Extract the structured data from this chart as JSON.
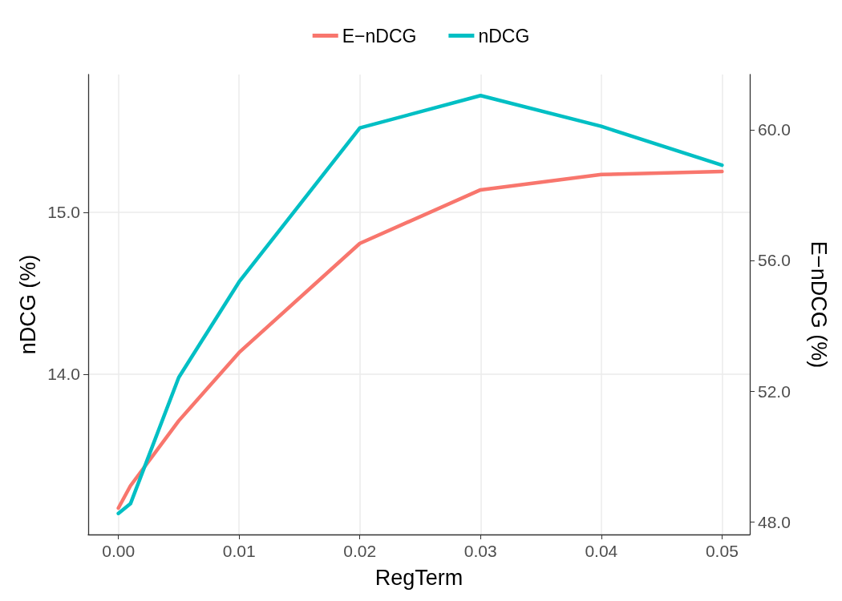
{
  "chart_data": {
    "type": "line",
    "xlabel": "RegTerm",
    "ylabel": "nDCG (%)",
    "y2label": "E−nDCG (%)",
    "x": [
      0,
      0.001,
      0.005,
      0.01,
      0.02,
      0.03,
      0.04,
      0.05
    ],
    "series": [
      {
        "name": "E−nDCG",
        "color": "#f8766d",
        "axis": "y2",
        "values": [
          48.42,
          49.1,
          51.09,
          53.18,
          56.52,
          58.16,
          58.63,
          58.72
        ]
      },
      {
        "name": "nDCG",
        "color": "#00bfc4",
        "values": [
          13.14,
          13.2,
          13.98,
          14.57,
          15.52,
          15.72,
          15.53,
          15.29
        ]
      }
    ],
    "xlim": [
      -0.0025,
      0.0523
    ],
    "xticks": [
      {
        "value": 0,
        "label": "0.00"
      },
      {
        "value": 0.01,
        "label": "0.01"
      },
      {
        "value": 0.02,
        "label": "0.02"
      },
      {
        "value": 0.03,
        "label": "0.03"
      },
      {
        "value": 0.04,
        "label": "0.04"
      },
      {
        "value": 0.05,
        "label": "0.05"
      }
    ],
    "ylim": [
      13.01,
      15.85
    ],
    "yticks": [
      {
        "value": 14,
        "label": "14.0"
      },
      {
        "value": 15,
        "label": "15.0"
      }
    ],
    "y2lim": [
      47.61,
      61.69
    ],
    "y2ticks": [
      {
        "value": 48,
        "label": "48.0"
      },
      {
        "value": 52,
        "label": "52.0"
      },
      {
        "value": 56,
        "label": "56.0"
      },
      {
        "value": 60,
        "label": "60.0"
      }
    ],
    "grid": true,
    "legend": "top",
    "marker": "none",
    "line_style": "solid"
  }
}
